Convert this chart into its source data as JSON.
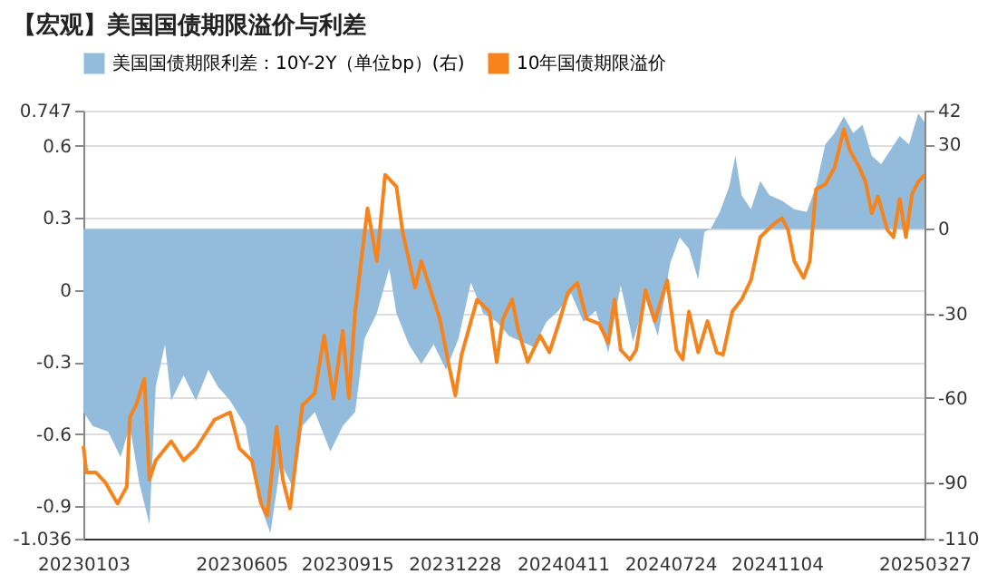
{
  "chart_data": {
    "type": "line",
    "title": "【宏观】美国国债期限溢价与利差",
    "xlim": [
      "2023-01-03",
      "2025-03-27"
    ],
    "xticks": [
      {
        "value": "2023-01-03",
        "label": "20230103"
      },
      {
        "value": "2023-06-05",
        "label": "20230605"
      },
      {
        "value": "2023-09-15",
        "label": "20230915"
      },
      {
        "value": "2023-12-28",
        "label": "20231228"
      },
      {
        "value": "2024-04-11",
        "label": "20240411"
      },
      {
        "value": "2024-07-24",
        "label": "20240724"
      },
      {
        "value": "2024-11-04",
        "label": "20241104"
      },
      {
        "value": "2025-03-27",
        "label": "20250327"
      }
    ],
    "ylim": [
      -1.036,
      0.747
    ],
    "yticks": [
      -1.036,
      -0.9,
      -0.6,
      -0.3,
      0,
      0.3,
      0.6,
      0.747
    ],
    "y2lim": [
      -110,
      42
    ],
    "y2ticks": [
      -110,
      -90,
      -60,
      -30,
      0,
      30,
      42
    ],
    "grid": "y",
    "legend": "top",
    "series": [
      {
        "name": "美国国债期限利差：10Y-2Y（单位bp）(右)",
        "type": "area",
        "axis": "y2",
        "color": "#93bbdb",
        "x": [
          "2023-01-03",
          "2023-01-12",
          "2023-01-27",
          "2023-02-08",
          "2023-02-17",
          "2023-02-26",
          "2023-03-08",
          "2023-03-14",
          "2023-03-23",
          "2023-03-29",
          "2023-04-10",
          "2023-04-22",
          "2023-05-04",
          "2023-05-13",
          "2023-05-25",
          "2023-06-09",
          "2023-06-21",
          "2023-07-03",
          "2023-07-13",
          "2023-07-25",
          "2023-08-03",
          "2023-08-15",
          "2023-08-30",
          "2023-09-11",
          "2023-09-23",
          "2023-10-02",
          "2023-10-14",
          "2023-10-26",
          "2023-11-02",
          "2023-11-14",
          "2023-11-26",
          "2023-12-08",
          "2023-12-20",
          "2024-01-01",
          "2024-01-13",
          "2024-01-25",
          "2024-02-07",
          "2024-02-19",
          "2024-03-02",
          "2024-03-14",
          "2024-03-26",
          "2024-04-07",
          "2024-04-19",
          "2024-05-01",
          "2024-05-13",
          "2024-05-25",
          "2024-06-06",
          "2024-06-18",
          "2024-06-30",
          "2024-07-12",
          "2024-07-24",
          "2024-08-02",
          "2024-08-11",
          "2024-08-20",
          "2024-08-26",
          "2024-09-01",
          "2024-09-10",
          "2024-09-19",
          "2024-09-25",
          "2024-10-01",
          "2024-10-10",
          "2024-10-19",
          "2024-10-28",
          "2024-11-09",
          "2024-11-21",
          "2024-12-03",
          "2024-12-12",
          "2024-12-21",
          "2024-12-30",
          "2025-01-08",
          "2025-01-17",
          "2025-01-26",
          "2025-02-04",
          "2025-02-13",
          "2025-02-22",
          "2025-03-03",
          "2025-03-12",
          "2025-03-21",
          "2025-03-27"
        ],
        "values": [
          -65,
          -70,
          -72,
          -81,
          -70,
          -90,
          -105,
          -56,
          -41,
          -61,
          -52,
          -61,
          -50,
          -56,
          -61,
          -70,
          -96,
          -108,
          -83,
          -92,
          -70,
          -65,
          -79,
          -70,
          -65,
          -39,
          -30,
          -14,
          -30,
          -41,
          -48,
          -41,
          -50,
          -39,
          -19,
          -30,
          -33,
          -38,
          -40,
          -42,
          -33,
          -29,
          -23,
          -33,
          -29,
          -44,
          -20,
          -40,
          -25,
          -38,
          -12,
          -3,
          -7,
          -18,
          -1,
          0,
          6,
          15,
          26,
          12,
          7,
          17,
          12,
          10,
          7,
          6,
          15,
          30,
          34,
          40,
          34,
          37,
          26,
          23,
          28,
          33,
          30,
          41,
          38
        ]
      },
      {
        "name": "10年国债期限溢价",
        "color": "#f7831c",
        "x": [
          "2023-01-03",
          "2023-01-06",
          "2023-01-15",
          "2023-01-24",
          "2023-02-05",
          "2023-02-14",
          "2023-02-17",
          "2023-02-23",
          "2023-03-03",
          "2023-03-08",
          "2023-03-14",
          "2023-03-29",
          "2023-04-10",
          "2023-04-22",
          "2023-05-10",
          "2023-05-25",
          "2023-06-03",
          "2023-06-15",
          "2023-06-24",
          "2023-06-30",
          "2023-07-09",
          "2023-07-15",
          "2023-07-22",
          "2023-08-03",
          "2023-08-15",
          "2023-08-24",
          "2023-09-02",
          "2023-09-11",
          "2023-09-17",
          "2023-09-23",
          "2023-10-05",
          "2023-10-14",
          "2023-10-22",
          "2023-11-02",
          "2023-11-08",
          "2023-11-20",
          "2023-11-26",
          "2023-12-05",
          "2023-12-14",
          "2023-12-23",
          "2023-12-29",
          "2024-01-04",
          "2024-01-19",
          "2024-01-31",
          "2024-02-07",
          "2024-02-13",
          "2024-02-22",
          "2024-02-28",
          "2024-03-08",
          "2024-03-20",
          "2024-03-29",
          "2024-04-07",
          "2024-04-16",
          "2024-04-25",
          "2024-05-04",
          "2024-05-16",
          "2024-05-25",
          "2024-05-31",
          "2024-06-06",
          "2024-06-15",
          "2024-06-21",
          "2024-06-30",
          "2024-07-09",
          "2024-07-21",
          "2024-07-30",
          "2024-08-05",
          "2024-08-11",
          "2024-08-20",
          "2024-08-29",
          "2024-09-07",
          "2024-09-13",
          "2024-09-22",
          "2024-10-01",
          "2024-10-10",
          "2024-10-19",
          "2024-10-31",
          "2024-11-09",
          "2024-11-15",
          "2024-11-21",
          "2024-11-30",
          "2024-12-06",
          "2024-12-12",
          "2024-12-21",
          "2024-12-30",
          "2025-01-08",
          "2025-01-14",
          "2025-01-23",
          "2025-01-29",
          "2025-02-04",
          "2025-02-10",
          "2025-02-19",
          "2025-02-25",
          "2025-03-03",
          "2025-03-09",
          "2025-03-15",
          "2025-03-21",
          "2025-03-27"
        ],
        "values": [
          -0.65,
          -0.76,
          -0.76,
          -0.8,
          -0.89,
          -0.82,
          -0.53,
          -0.48,
          -0.37,
          -0.79,
          -0.71,
          -0.63,
          -0.71,
          -0.66,
          -0.54,
          -0.51,
          -0.66,
          -0.71,
          -0.89,
          -0.94,
          -0.57,
          -0.79,
          -0.91,
          -0.48,
          -0.43,
          -0.19,
          -0.45,
          -0.17,
          -0.45,
          -0.09,
          0.34,
          0.12,
          0.48,
          0.43,
          0.24,
          0.01,
          0.12,
          0,
          -0.12,
          -0.32,
          -0.44,
          -0.27,
          -0.04,
          -0.09,
          -0.3,
          -0.12,
          -0.04,
          -0.17,
          -0.3,
          -0.19,
          -0.26,
          -0.14,
          -0.01,
          0.03,
          -0.12,
          -0.14,
          -0.22,
          -0.04,
          -0.25,
          -0.29,
          -0.25,
          0,
          -0.13,
          0.04,
          -0.25,
          -0.29,
          -0.09,
          -0.26,
          -0.13,
          -0.26,
          -0.27,
          -0.09,
          -0.04,
          0.04,
          0.22,
          0.27,
          0.3,
          0.25,
          0.12,
          0.05,
          0.12,
          0.42,
          0.44,
          0.51,
          0.67,
          0.58,
          0.51,
          0.45,
          0.32,
          0.39,
          0.25,
          0.22,
          0.38,
          0.22,
          0.4,
          0.45,
          0.48
        ]
      }
    ]
  }
}
